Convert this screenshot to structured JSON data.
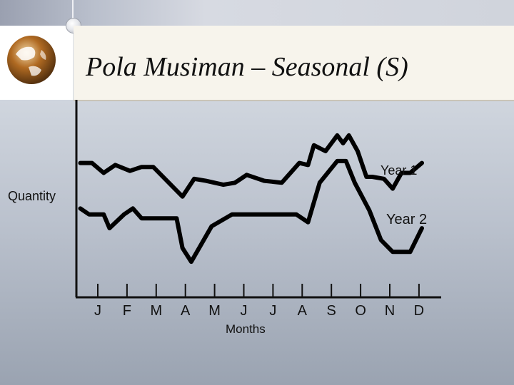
{
  "slide": {
    "title": "Pola Musiman – Seasonal (S)"
  },
  "chart_data": {
    "type": "line",
    "title": "Pola Musiman – Seasonal (S)",
    "xlabel": "Months",
    "ylabel": "Quantity",
    "categories": [
      "J",
      "F",
      "M",
      "A",
      "M",
      "J",
      "J",
      "A",
      "S",
      "O",
      "N",
      "D"
    ],
    "ylim": [
      0,
      100
    ],
    "grid": false,
    "legend": "inline-right",
    "series": [
      {
        "name": "Year 1",
        "x": [
          -0.6,
          -0.2,
          0.2,
          0.6,
          1.1,
          1.5,
          1.9,
          2.3,
          2.9,
          3.3,
          3.7,
          4.3,
          4.7,
          5.1,
          5.7,
          6.3,
          6.9,
          7.2,
          7.4,
          7.8,
          8.2,
          8.4,
          8.6,
          8.9,
          9.2,
          9.4,
          9.8,
          10.1,
          10.4,
          10.7,
          11.1
        ],
        "values": [
          68,
          68,
          63,
          67,
          64,
          66,
          66,
          60,
          51,
          60,
          59,
          57,
          58,
          62,
          59,
          58,
          68,
          67,
          77,
          74,
          82,
          78,
          82,
          74,
          61,
          61,
          60,
          55,
          63,
          63,
          68
        ]
      },
      {
        "name": "Year 2",
        "x": [
          -0.6,
          -0.3,
          0.2,
          0.4,
          0.9,
          1.2,
          1.5,
          1.9,
          2.7,
          2.9,
          3.2,
          3.9,
          4.6,
          5.3,
          6.1,
          6.8,
          7.2,
          7.6,
          8.2,
          8.5,
          8.8,
          9.3,
          9.7,
          10.1,
          10.7,
          11.1
        ],
        "values": [
          45,
          42,
          42,
          35,
          42,
          45,
          40,
          40,
          40,
          25,
          18,
          36,
          42,
          42,
          42,
          42,
          38,
          58,
          69,
          69,
          58,
          44,
          29,
          23,
          23,
          35
        ]
      }
    ]
  }
}
